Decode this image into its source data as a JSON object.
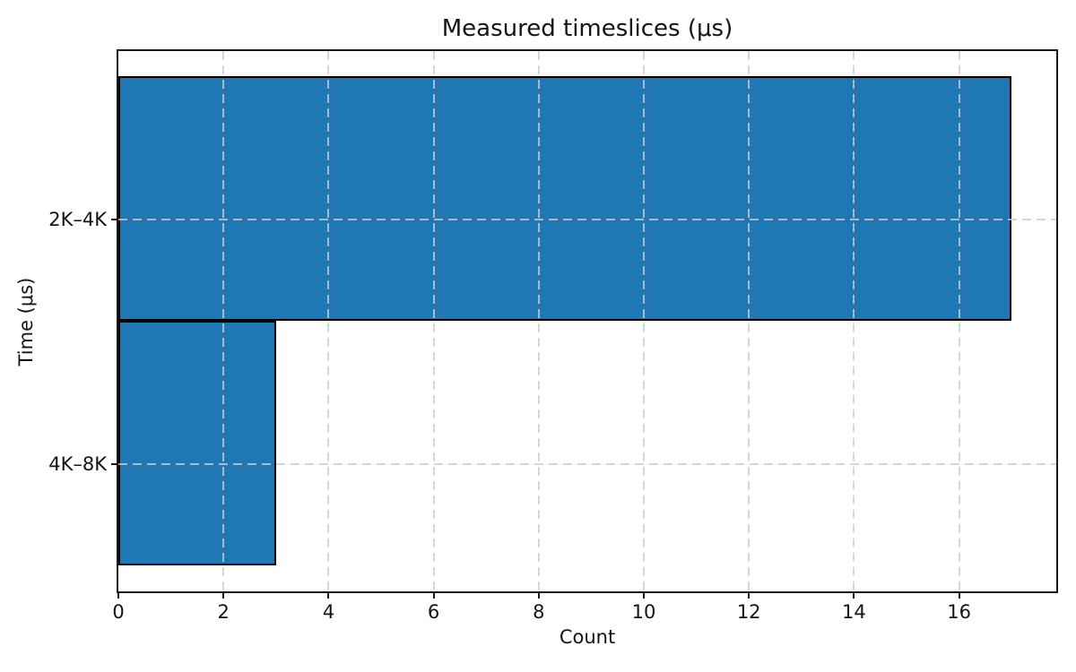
{
  "chart_data": {
    "type": "bar",
    "orientation": "horizontal",
    "title": "Measured timeslices (μs)",
    "xlabel": "Count",
    "ylabel": "Time (μs)",
    "categories": [
      "2K–4K",
      "4K–8K"
    ],
    "values": [
      17,
      3
    ],
    "xlim": [
      0,
      17.85
    ],
    "xticks": [
      0,
      2,
      4,
      6,
      8,
      10,
      12,
      14,
      16
    ],
    "grid": "dashed, drawn above bars, vertical at every x tick and horizontal at every category tick",
    "legend": "none",
    "colors": {
      "bar_fill": "#1f77b4",
      "bar_edge": "#000000",
      "grid": "#cccccc",
      "spine": "#1a1a1a",
      "text": "#141414",
      "background": "#ffffff"
    }
  }
}
